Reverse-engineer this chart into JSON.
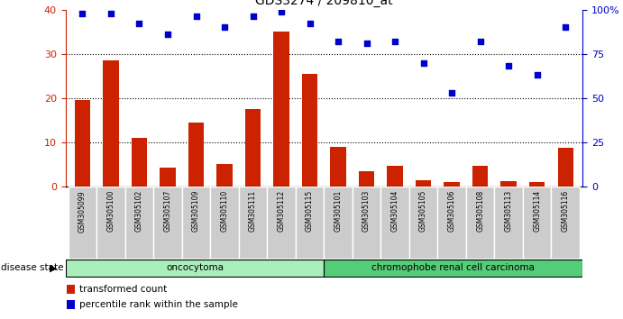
{
  "title": "GDS3274 / 209810_at",
  "samples": [
    "GSM305099",
    "GSM305100",
    "GSM305102",
    "GSM305107",
    "GSM305109",
    "GSM305110",
    "GSM305111",
    "GSM305112",
    "GSM305115",
    "GSM305101",
    "GSM305103",
    "GSM305104",
    "GSM305105",
    "GSM305106",
    "GSM305108",
    "GSM305113",
    "GSM305114",
    "GSM305116"
  ],
  "bar_values": [
    19.5,
    28.5,
    11.0,
    4.2,
    14.5,
    5.2,
    17.5,
    35.0,
    25.5,
    9.0,
    3.5,
    4.8,
    1.5,
    1.0,
    4.8,
    1.2,
    1.0,
    8.8
  ],
  "dot_values_pct": [
    98,
    98,
    92,
    86,
    96,
    90,
    96,
    99,
    92,
    82,
    81,
    82,
    70,
    53,
    82,
    68,
    63,
    90
  ],
  "bar_color": "#cc2200",
  "dot_color": "#0000cc",
  "left_ylim": [
    0,
    40
  ],
  "right_ylim": [
    0,
    100
  ],
  "left_yticks": [
    0,
    10,
    20,
    30,
    40
  ],
  "right_yticks": [
    0,
    25,
    50,
    75,
    100
  ],
  "right_yticklabels": [
    "0",
    "25",
    "50",
    "75",
    "100%"
  ],
  "ytick_color_left": "#cc2200",
  "ytick_color_right": "#0000cc",
  "grid_values": [
    10,
    20,
    30
  ],
  "group1_label": "oncocytoma",
  "group2_label": "chromophobe renal cell carcinoma",
  "group1_count": 9,
  "group2_count": 9,
  "disease_state_label": "disease state",
  "legend_bar_label": "transformed count",
  "legend_dot_label": "percentile rank within the sample",
  "group1_color": "#aaeebb",
  "group2_color": "#55cc77",
  "background_color": "#ffffff",
  "tick_label_bg": "#cccccc"
}
